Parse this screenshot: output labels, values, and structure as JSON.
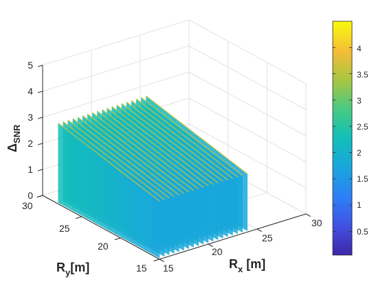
{
  "chart_data": {
    "type": "surface3d",
    "title": "",
    "xlabel": {
      "main": "R",
      "sub": "x",
      "unit": " [m]"
    },
    "ylabel": {
      "main": "R",
      "sub": "y",
      "unit": "[m]"
    },
    "zlabel": {
      "main": "Δ",
      "sub": "SNR"
    },
    "xlim": [
      15,
      30
    ],
    "ylim": [
      15,
      30
    ],
    "zlim": [
      0,
      5
    ],
    "xticks": [
      "15",
      "20",
      "25",
      "30"
    ],
    "yticks": [
      "15",
      "20",
      "25",
      "30"
    ],
    "zticks": [
      "0",
      "1",
      "2",
      "3",
      "4",
      "5"
    ],
    "grid": true,
    "colormap": "parula",
    "colorbar": {
      "range": [
        0.05,
        4.5
      ],
      "ticks": [
        "0.5",
        "1",
        "1.5",
        "2",
        "2.5",
        "3",
        "3.5",
        "4"
      ],
      "tick_values": [
        0.5,
        1,
        1.5,
        2,
        2.5,
        3,
        3.5,
        4
      ]
    },
    "ridges_at_x": [
      15,
      15.5,
      16,
      16.5,
      17,
      17.5,
      18,
      18.5,
      19,
      19.5,
      20,
      20.5,
      21,
      21.5,
      22,
      22.5,
      23,
      23.5,
      24
    ],
    "ridge_peak_value": 3.1,
    "ridge_valley_value": 0.05,
    "y_span_of_surface": [
      15,
      28
    ]
  }
}
